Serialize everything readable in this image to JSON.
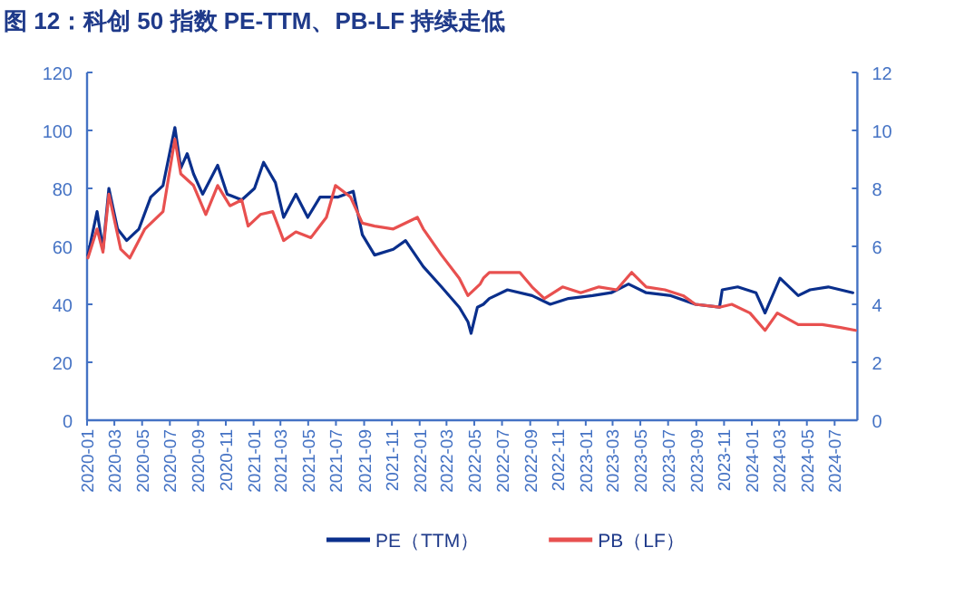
{
  "chart_data": {
    "type": "line",
    "title": "图 12：科创 50 指数 PE-TTM、PB-LF 持续走低",
    "legend": "bottom",
    "grid": false,
    "marker": "none",
    "line_style": "solid",
    "xlim": [
      "2020-01-01",
      "2024-08-20"
    ],
    "xticks": [
      "2020-01",
      "2020-03",
      "2020-05",
      "2020-07",
      "2020-09",
      "2020-11",
      "2021-01",
      "2021-03",
      "2021-05",
      "2021-07",
      "2021-09",
      "2021-11",
      "2022-01",
      "2022-03",
      "2022-05",
      "2022-07",
      "2022-09",
      "2022-11",
      "2023-01",
      "2023-03",
      "2023-05",
      "2023-07",
      "2023-09",
      "2023-11",
      "2024-01",
      "2024-03",
      "2024-05",
      "2024-07"
    ],
    "ylim": [
      0,
      120
    ],
    "yticks": [
      0,
      20,
      40,
      60,
      80,
      100,
      120
    ],
    "y2lim": [
      0,
      12
    ],
    "y2ticks": [
      0,
      2,
      4,
      6,
      8,
      10,
      12
    ],
    "series": [
      {
        "name": "PE（TTM）",
        "color": "#0a2f8c",
        "axis": "y",
        "x": [
          "2020-01-03",
          "2020-01-23",
          "2020-02-05",
          "2020-02-18",
          "2020-03-08",
          "2020-03-28",
          "2020-04-24",
          "2020-05-20",
          "2020-06-16",
          "2020-07-12",
          "2020-07-25",
          "2020-08-08",
          "2020-08-22",
          "2020-09-11",
          "2020-10-14",
          "2020-11-04",
          "2020-12-06",
          "2021-01-03",
          "2021-01-23",
          "2021-02-18",
          "2021-03-08",
          "2021-04-04",
          "2021-04-30",
          "2021-05-27",
          "2021-07-06",
          "2021-08-08",
          "2021-08-28",
          "2021-09-24",
          "2021-11-04",
          "2021-12-01",
          "2022-01-09",
          "2022-02-18",
          "2022-03-29",
          "2022-04-17",
          "2022-04-24",
          "2022-05-08",
          "2022-05-21",
          "2022-06-03",
          "2022-07-13",
          "2022-09-05",
          "2022-10-15",
          "2022-11-24",
          "2023-01-16",
          "2023-02-26",
          "2023-04-05",
          "2023-05-14",
          "2023-07-07",
          "2023-08-30",
          "2023-10-22",
          "2023-10-28",
          "2023-12-01",
          "2024-01-10",
          "2024-01-30",
          "2024-03-03",
          "2024-04-12",
          "2024-05-08",
          "2024-06-17",
          "2024-08-10"
        ],
        "values": [
          57,
          72,
          59,
          80,
          66,
          62,
          66,
          77,
          81,
          101,
          87,
          92,
          85,
          78,
          88,
          78,
          76,
          80,
          89,
          82,
          70,
          78,
          70,
          77,
          77,
          79,
          64,
          57,
          59,
          62,
          53,
          46,
          39,
          34,
          30,
          39,
          40,
          42,
          45,
          43,
          40,
          42,
          43,
          44,
          47,
          44,
          43,
          40,
          39,
          45,
          46,
          44,
          37,
          49,
          43,
          45,
          46,
          44
        ]
      },
      {
        "name": "PB（LF）",
        "color": "#e8504f",
        "axis": "y2",
        "x": [
          "2020-01-03",
          "2020-01-23",
          "2020-02-05",
          "2020-02-18",
          "2020-03-15",
          "2020-04-04",
          "2020-05-07",
          "2020-06-16",
          "2020-07-12",
          "2020-07-25",
          "2020-08-22",
          "2020-09-18",
          "2020-10-14",
          "2020-11-10",
          "2020-12-06",
          "2020-12-20",
          "2021-01-16",
          "2021-02-12",
          "2021-03-08",
          "2021-04-04",
          "2021-05-07",
          "2021-06-10",
          "2021-06-30",
          "2021-08-02",
          "2021-08-28",
          "2021-09-24",
          "2021-11-04",
          "2021-12-27",
          "2022-01-09",
          "2022-02-18",
          "2022-03-29",
          "2022-04-17",
          "2022-05-14",
          "2022-05-21",
          "2022-06-03",
          "2022-06-17",
          "2022-08-09",
          "2022-09-05",
          "2022-10-02",
          "2022-11-11",
          "2022-12-21",
          "2023-01-30",
          "2023-03-10",
          "2023-04-12",
          "2023-05-14",
          "2023-06-24",
          "2023-08-03",
          "2023-08-30",
          "2023-10-22",
          "2023-11-18",
          "2023-12-28",
          "2024-01-30",
          "2024-02-26",
          "2024-04-12",
          "2024-06-04",
          "2024-07-14",
          "2024-08-16"
        ],
        "values": [
          5.6,
          6.6,
          5.8,
          7.8,
          5.9,
          5.6,
          6.6,
          7.2,
          9.7,
          8.5,
          8.1,
          7.1,
          8.1,
          7.4,
          7.6,
          6.7,
          7.1,
          7.2,
          6.2,
          6.5,
          6.3,
          7.0,
          8.1,
          7.7,
          6.8,
          6.7,
          6.6,
          7.0,
          6.6,
          5.7,
          4.9,
          4.3,
          4.7,
          4.9,
          5.1,
          5.1,
          5.1,
          4.6,
          4.2,
          4.6,
          4.4,
          4.6,
          4.5,
          5.1,
          4.6,
          4.5,
          4.3,
          4.0,
          3.9,
          4.0,
          3.7,
          3.1,
          3.7,
          3.3,
          3.3,
          3.2,
          3.1
        ]
      }
    ]
  }
}
